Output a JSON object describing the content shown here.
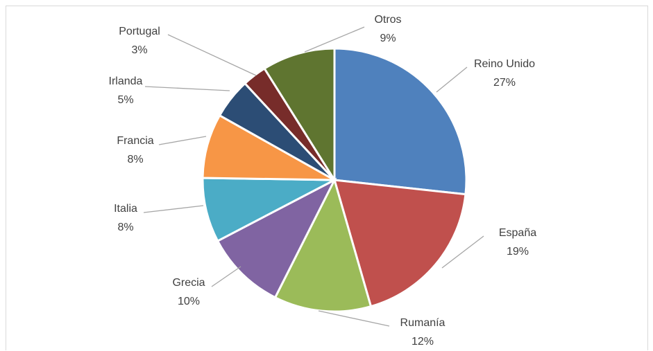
{
  "chart_data": {
    "type": "pie",
    "title": "",
    "slices": [
      {
        "label": "Reino Unido",
        "value": 27,
        "pct_label": "27%",
        "color": "#4f81bd"
      },
      {
        "label": "España",
        "value": 19,
        "pct_label": "19%",
        "color": "#c0504d"
      },
      {
        "label": "Rumanía",
        "value": 12,
        "pct_label": "12%",
        "color": "#9bbb59"
      },
      {
        "label": "Grecia",
        "value": 10,
        "pct_label": "10%",
        "color": "#8064a2"
      },
      {
        "label": "Italia",
        "value": 8,
        "pct_label": "8%",
        "color": "#4bacc6"
      },
      {
        "label": "Francia",
        "value": 8,
        "pct_label": "8%",
        "color": "#f79646"
      },
      {
        "label": "Irlanda",
        "value": 5,
        "pct_label": "5%",
        "color": "#2c4d75"
      },
      {
        "label": "Portugal",
        "value": 3,
        "pct_label": "3%",
        "color": "#772c2a"
      },
      {
        "label": "Otros",
        "value": 9,
        "pct_label": "9%",
        "color": "#5f7530"
      }
    ],
    "start": "12 o'clock",
    "direction": "clockwise",
    "legend": "none",
    "data_labels": "outside with leader lines"
  }
}
